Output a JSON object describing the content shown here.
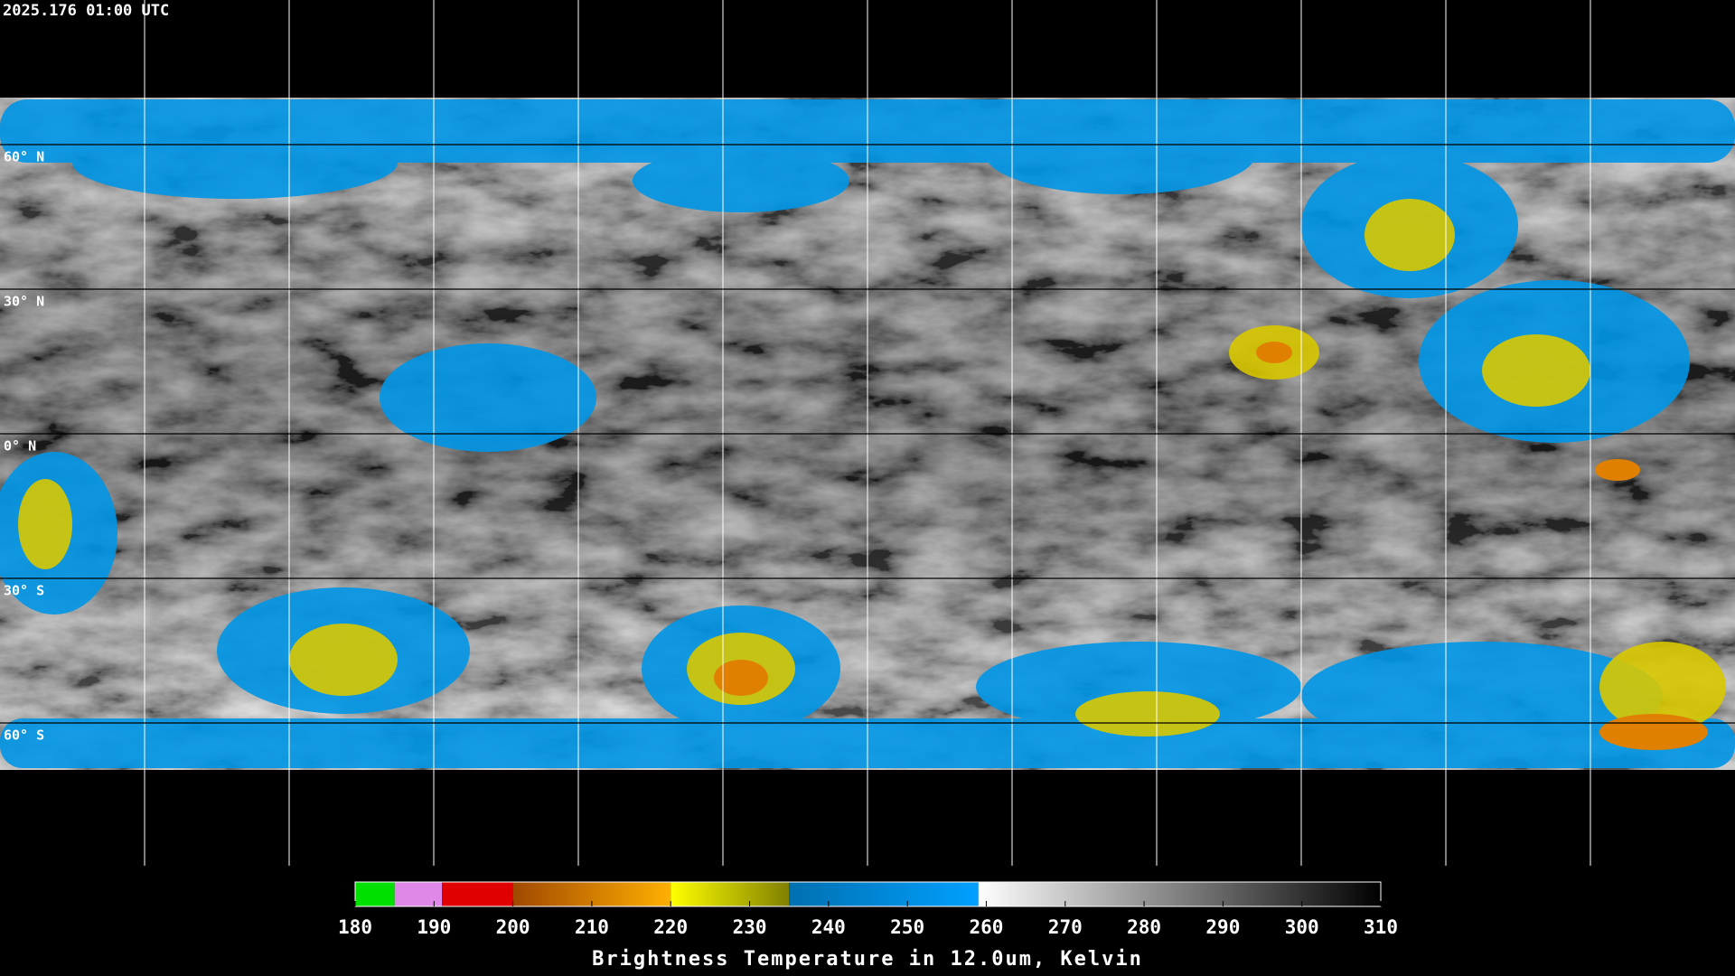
{
  "header": {
    "timestamp": "2025.176 01:00 UTC"
  },
  "map": {
    "latitude_lines": [
      {
        "value": 60,
        "label": "60° N"
      },
      {
        "value": 30,
        "label": "30° N"
      },
      {
        "value": 0,
        "label": "0° N"
      },
      {
        "value": -30,
        "label": "30° S"
      },
      {
        "value": -60,
        "label": "60° S"
      }
    ]
  },
  "colorbar": {
    "range": [
      180,
      310
    ],
    "ticks": [
      180,
      190,
      200,
      210,
      220,
      230,
      240,
      250,
      260,
      270,
      280,
      290,
      300,
      310
    ],
    "segments": [
      {
        "from": 180,
        "to": 185,
        "colors": [
          "#00e000",
          "#00e000"
        ]
      },
      {
        "from": 185,
        "to": 191,
        "colors": [
          "#e088e8",
          "#e088e8"
        ]
      },
      {
        "from": 191,
        "to": 200,
        "colors": [
          "#e00000",
          "#e00000"
        ]
      },
      {
        "from": 200,
        "to": 220,
        "colors": [
          "#a04800",
          "#ffb000"
        ]
      },
      {
        "from": 220,
        "to": 235,
        "colors": [
          "#ffff00",
          "#808000"
        ]
      },
      {
        "from": 235,
        "to": 259,
        "colors": [
          "#0070b0",
          "#00a0ff"
        ]
      },
      {
        "from": 259,
        "to": 310,
        "colors": [
          "#ffffff",
          "#000000"
        ]
      }
    ],
    "title": "Brightness Temperature in 12.0um, Kelvin"
  }
}
